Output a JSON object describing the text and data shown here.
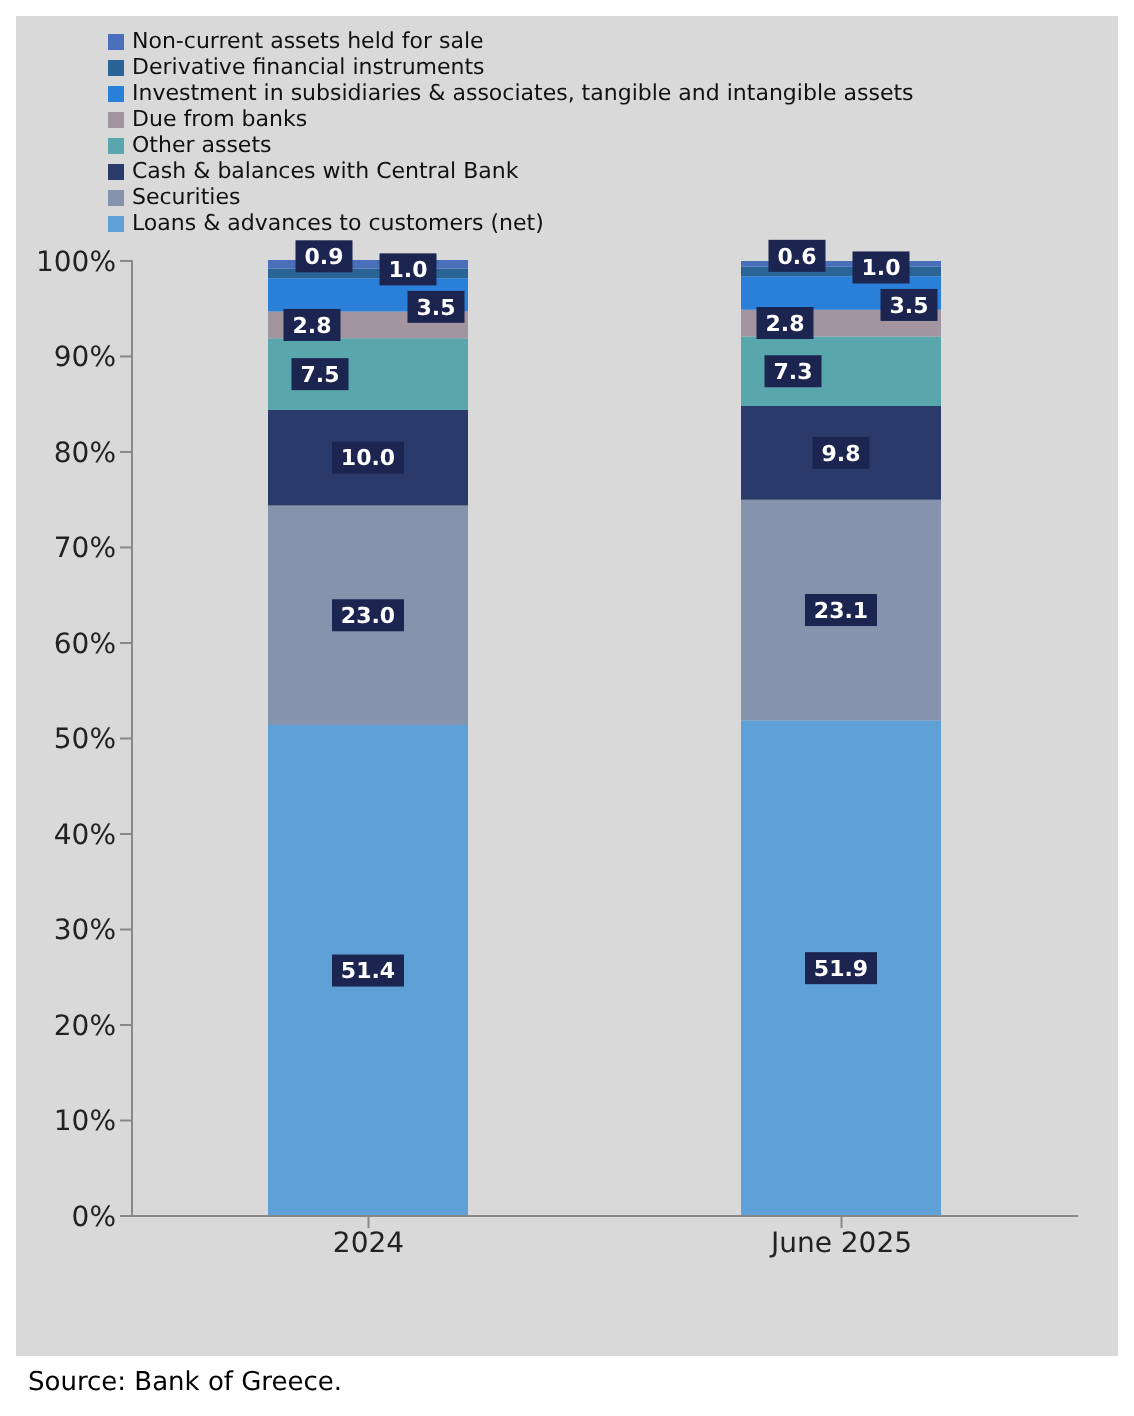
{
  "chart_data": {
    "type": "bar",
    "stacked": true,
    "categories": [
      "2024",
      "June 2025"
    ],
    "series": [
      {
        "name": "Loans & advances to customers (net)",
        "color": "#5fa0d6",
        "values": [
          51.4,
          51.9
        ],
        "value_labels": [
          "51.4",
          "51.9"
        ]
      },
      {
        "name": "Securities",
        "color": "#8593ad",
        "values": [
          23.0,
          23.1
        ],
        "value_labels": [
          "23.0",
          "23.1"
        ]
      },
      {
        "name": "Cash & balances with Central Bank",
        "color": "#2a3a6a",
        "values": [
          10.0,
          9.8
        ],
        "value_labels": [
          "10.0",
          "9.8"
        ]
      },
      {
        "name": "Other assets",
        "color": "#5aa6ad",
        "values": [
          7.5,
          7.3
        ],
        "value_labels": [
          "7.5",
          "7.3"
        ]
      },
      {
        "name": "Due from banks",
        "color": "#a3959f",
        "values": [
          2.8,
          2.8
        ],
        "value_labels": [
          "2.8",
          "2.8"
        ]
      },
      {
        "name": "Investment in subsidiaries & associates, tangible and intangible assets",
        "color": "#2a7fd8",
        "values": [
          3.5,
          3.5
        ],
        "value_labels": [
          "3.5",
          "3.5"
        ]
      },
      {
        "name": "Derivative financial instruments",
        "color": "#2a6496",
        "values": [
          1.0,
          1.0
        ],
        "value_labels": [
          "1.0",
          "1.0"
        ]
      },
      {
        "name": "Non-current assets held for sale",
        "color": "#4a6fba",
        "values": [
          0.9,
          0.6
        ],
        "value_labels": [
          "0.9",
          "0.6"
        ]
      }
    ],
    "ylim": [
      0,
      100.1
    ],
    "yticks": [
      {
        "value": 0,
        "label": "0%"
      },
      {
        "value": 10,
        "label": "10%"
      },
      {
        "value": 20,
        "label": "20%"
      },
      {
        "value": 30,
        "label": "30%"
      },
      {
        "value": 40,
        "label": "40%"
      },
      {
        "value": 50,
        "label": "50%"
      },
      {
        "value": 60,
        "label": "60%"
      },
      {
        "value": 70,
        "label": "70%"
      },
      {
        "value": 80,
        "label": "80%"
      },
      {
        "value": 90,
        "label": "90%"
      },
      {
        "value": 100,
        "label": "100%"
      }
    ],
    "grid": false,
    "legend": "top left",
    "annotations": [
      "Source: Bank of Greece."
    ]
  }
}
